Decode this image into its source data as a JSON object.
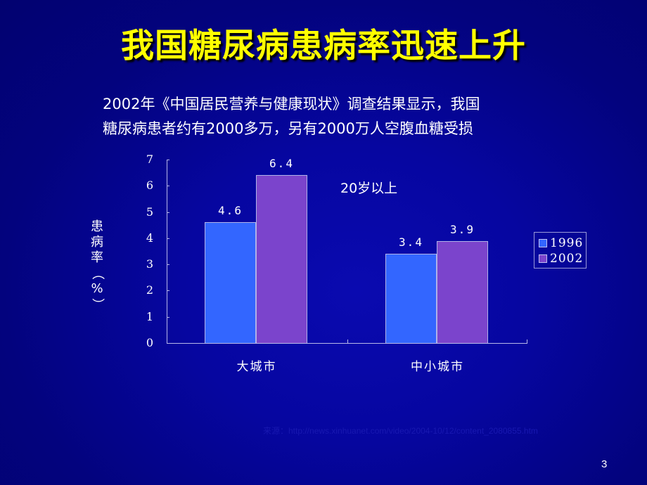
{
  "slide": {
    "title": "我国糖尿病患病率迅速上升",
    "subtitle_line1": "2002年《中国居民营养与健康现状》调查结果显示，我国",
    "subtitle_line2": "糖尿病患者约有2000多万，另有2000万人空腹血糖受损",
    "annotation": "20岁以上",
    "source": "来源：http://news.xinhuanet.com/video/2004-10/12/content_2080855.htm",
    "page_number": "3"
  },
  "colors": {
    "title": "#ffff00",
    "background": "#03037e",
    "series_1996": "#3366ff",
    "series_2002": "#7b44cc"
  },
  "chart_data": {
    "type": "bar",
    "title": "",
    "categories": [
      "大城市",
      "中小城市"
    ],
    "series": [
      {
        "name": "1996",
        "values": [
          4.6,
          3.4
        ],
        "labels": [
          "4.6",
          "3.4"
        ]
      },
      {
        "name": "2002",
        "values": [
          6.4,
          3.9
        ],
        "labels": [
          "6.4",
          "3.9"
        ]
      }
    ],
    "xlabel": "",
    "ylabel": "患病率（%）",
    "ylim": [
      0,
      7
    ],
    "yticks": [
      "0",
      "1",
      "2",
      "3",
      "4",
      "5",
      "6",
      "7"
    ],
    "annotation": "20岁以上",
    "grid": false,
    "legend_position": "right"
  }
}
